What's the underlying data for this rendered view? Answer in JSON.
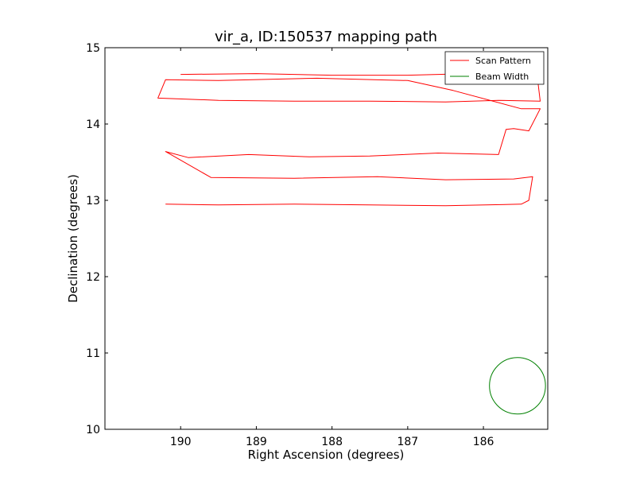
{
  "chart_data": {
    "type": "line",
    "title": "vir_a, ID:150537 mapping path",
    "xlabel": "Right Ascension (degrees)",
    "ylabel": "Declination (degrees)",
    "xlim": [
      191.0,
      185.15
    ],
    "ylim": [
      10,
      15
    ],
    "x_ticks": [
      190,
      189,
      188,
      187,
      186
    ],
    "x_tick_labels": [
      "190",
      "189",
      "188",
      "187",
      "186"
    ],
    "y_ticks": [
      10,
      11,
      12,
      13,
      14,
      15
    ],
    "y_tick_labels": [
      "10",
      "11",
      "12",
      "13",
      "14",
      "15"
    ],
    "grid": false,
    "legend": {
      "position": "top-right",
      "entries": [
        {
          "label": "Scan Pattern",
          "color": "#ff0000"
        },
        {
          "label": "Beam Width",
          "color": "#008000"
        }
      ]
    },
    "series": [
      {
        "name": "Scan Pattern",
        "color": "#ff0000",
        "x": [
          190.0,
          189.0,
          188.0,
          187.0,
          186.2,
          185.6,
          185.3,
          185.25,
          185.8,
          186.5,
          187.5,
          188.5,
          189.5,
          190.3,
          190.2,
          189.5,
          188.2,
          187.0,
          186.4,
          185.5,
          185.25,
          185.4,
          185.6,
          185.7,
          185.8,
          186.6,
          187.5,
          188.3,
          189.1,
          189.9,
          190.2,
          189.6,
          188.5,
          187.4,
          186.5,
          185.6,
          185.35,
          185.4,
          185.5,
          186.5,
          187.5,
          188.5,
          189.5,
          190.2
        ],
        "y": [
          14.65,
          14.66,
          14.64,
          14.64,
          14.66,
          14.69,
          14.72,
          14.3,
          14.31,
          14.29,
          14.3,
          14.3,
          14.31,
          14.34,
          14.58,
          14.57,
          14.6,
          14.57,
          14.44,
          14.2,
          14.2,
          13.91,
          13.94,
          13.93,
          13.6,
          13.62,
          13.58,
          13.57,
          13.6,
          13.56,
          13.64,
          13.3,
          13.29,
          13.31,
          13.27,
          13.28,
          13.31,
          13.0,
          12.95,
          12.93,
          12.94,
          12.95,
          12.94,
          12.95
        ]
      },
      {
        "name": "Beam Width",
        "color": "#008000",
        "type": "circle",
        "center": [
          185.55,
          10.57
        ],
        "radius": 0.37
      }
    ]
  }
}
